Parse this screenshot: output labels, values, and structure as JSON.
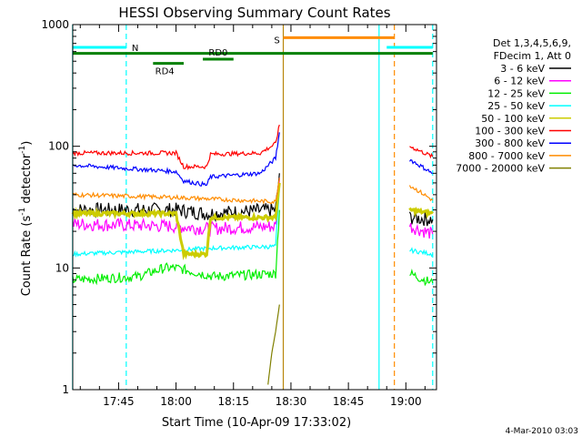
{
  "chart_data": {
    "type": "line",
    "title": "HESSI Observing Summary Count Rates",
    "xlabel": "Start Time (10-Apr-09 17:33:02)",
    "ylabel_main": "Count Rate (s",
    "ylabel_sup1": "-1",
    "ylabel_mid": " detector",
    "ylabel_sup2": "-1",
    "ylabel_end": ")",
    "y_scale": "log",
    "ylim": [
      1,
      1000
    ],
    "xlim": [
      "17:33:02",
      "19:08:00"
    ],
    "x_ticks": [
      "17:45",
      "18:00",
      "18:15",
      "18:30",
      "18:45",
      "19:00"
    ],
    "y_ticks": [
      "1",
      "10",
      "100",
      "1000"
    ],
    "legend_header": [
      "Det 1,3,4,5,6,9,",
      "FDecim 1, Att 0"
    ],
    "legend_placement": "right",
    "footer": "4-Mar-2010 03:03",
    "series": [
      {
        "name": "3 - 6 keV",
        "color": "#000000",
        "segments": [
          [
            [
              "17:33",
              30
            ],
            [
              "18:00",
              30
            ],
            [
              "18:08",
              28
            ],
            [
              "18:26",
              30
            ],
            [
              "18:27",
              60
            ]
          ],
          [
            [
              "19:01",
              26
            ],
            [
              "19:07",
              25
            ]
          ]
        ]
      },
      {
        "name": "6 - 12 keV",
        "color": "#ff00ff",
        "segments": [
          [
            [
              "17:33",
              23
            ],
            [
              "18:00",
              22
            ],
            [
              "18:08",
              21
            ],
            [
              "18:26",
              22
            ],
            [
              "18:27",
              55
            ]
          ],
          [
            [
              "19:01",
              22
            ],
            [
              "19:07",
              19
            ]
          ]
        ]
      },
      {
        "name": "12 - 25 keV",
        "color": "#00ee00",
        "segments": [
          [
            [
              "17:33",
              8
            ],
            [
              "17:50",
              8.5
            ],
            [
              "17:57",
              10
            ],
            [
              "18:00",
              10
            ],
            [
              "18:10",
              8.5
            ],
            [
              "18:26",
              9
            ],
            [
              "18:27",
              30
            ]
          ],
          [
            [
              "19:01",
              9
            ],
            [
              "19:07",
              7.5
            ]
          ]
        ]
      },
      {
        "name": "25 - 50 keV",
        "color": "#00ffff",
        "segments": [
          [
            [
              "17:33",
              13
            ],
            [
              "18:00",
              14
            ],
            [
              "18:08",
              14.5
            ],
            [
              "18:26",
              15
            ],
            [
              "18:27",
              45
            ]
          ],
          [
            [
              "19:01",
              14
            ],
            [
              "19:07",
              13
            ]
          ]
        ]
      },
      {
        "name": "50 - 100 keV",
        "color": "#cccc00",
        "segments": [
          [
            [
              "17:33",
              28
            ],
            [
              "18:00",
              28
            ],
            [
              "18:02",
              13
            ],
            [
              "18:08",
              13
            ],
            [
              "18:09",
              26
            ],
            [
              "18:26",
              26
            ],
            [
              "18:27",
              50
            ]
          ],
          [
            [
              "19:01",
              30
            ],
            [
              "19:07",
              28
            ]
          ]
        ]
      },
      {
        "name": "100 - 300 keV",
        "color": "#ff0000",
        "segments": [
          [
            [
              "17:33",
              88
            ],
            [
              "18:00",
              88
            ],
            [
              "18:02",
              68
            ],
            [
              "18:08",
              68
            ],
            [
              "18:09",
              86
            ],
            [
              "18:22",
              88
            ],
            [
              "18:26",
              105
            ],
            [
              "18:27",
              150
            ]
          ],
          [
            [
              "19:01",
              100
            ],
            [
              "19:07",
              82
            ]
          ]
        ]
      },
      {
        "name": "300 - 800 keV",
        "color": "#0000ff",
        "segments": [
          [
            [
              "17:33",
              70
            ],
            [
              "18:00",
              62
            ],
            [
              "18:02",
              52
            ],
            [
              "18:08",
              48
            ],
            [
              "18:09",
              56
            ],
            [
              "18:22",
              60
            ],
            [
              "18:26",
              80
            ],
            [
              "18:27",
              130
            ]
          ],
          [
            [
              "19:01",
              78
            ],
            [
              "19:07",
              60
            ]
          ]
        ]
      },
      {
        "name": "800 - 7000 keV",
        "color": "#ff8c00",
        "segments": [
          [
            [
              "17:33",
              40
            ],
            [
              "18:00",
              38
            ],
            [
              "18:08",
              37
            ],
            [
              "18:26",
              35
            ],
            [
              "18:27",
              55
            ]
          ],
          [
            [
              "19:01",
              48
            ],
            [
              "19:07",
              36
            ]
          ]
        ]
      },
      {
        "name": "7000 - 20000 keV",
        "color": "#808000",
        "segments": [
          [
            [
              "18:24",
              1.1
            ],
            [
              "18:25",
              2
            ],
            [
              "18:26",
              3
            ],
            [
              "18:27",
              5
            ]
          ]
        ]
      }
    ],
    "flags": [
      {
        "label": "N",
        "color": "#00ffff",
        "y": 650,
        "segments": [
          [
            "17:33",
            "17:47"
          ],
          [
            "18:55",
            "19:07"
          ]
        ]
      },
      {
        "label": "S",
        "color": "#ff8c00",
        "y": 780,
        "segments": [
          [
            "18:28",
            "18:57"
          ]
        ]
      },
      {
        "label": "",
        "color": "#008000",
        "y": 580,
        "segments": [
          [
            "17:33",
            "19:07"
          ]
        ]
      },
      {
        "label": "RD0",
        "color": "#008000",
        "y": 520,
        "segments": [
          [
            "18:07",
            "18:15"
          ]
        ]
      },
      {
        "label": "RD4",
        "color": "#008000",
        "y": 480,
        "segments": [
          [
            "17:54",
            "18:02"
          ]
        ]
      }
    ],
    "vertical_markers": [
      {
        "t": "17:33",
        "color": "#00ffff",
        "style": "solid"
      },
      {
        "t": "17:47",
        "color": "#00ffff",
        "style": "dashed"
      },
      {
        "t": "18:28",
        "color": "#b8860b",
        "style": "solid"
      },
      {
        "t": "18:53",
        "color": "#00ffff",
        "style": "solid"
      },
      {
        "t": "18:57",
        "color": "#ff8c00",
        "style": "dashed"
      },
      {
        "t": "19:07",
        "color": "#00ffff",
        "style": "dashed"
      }
    ]
  }
}
